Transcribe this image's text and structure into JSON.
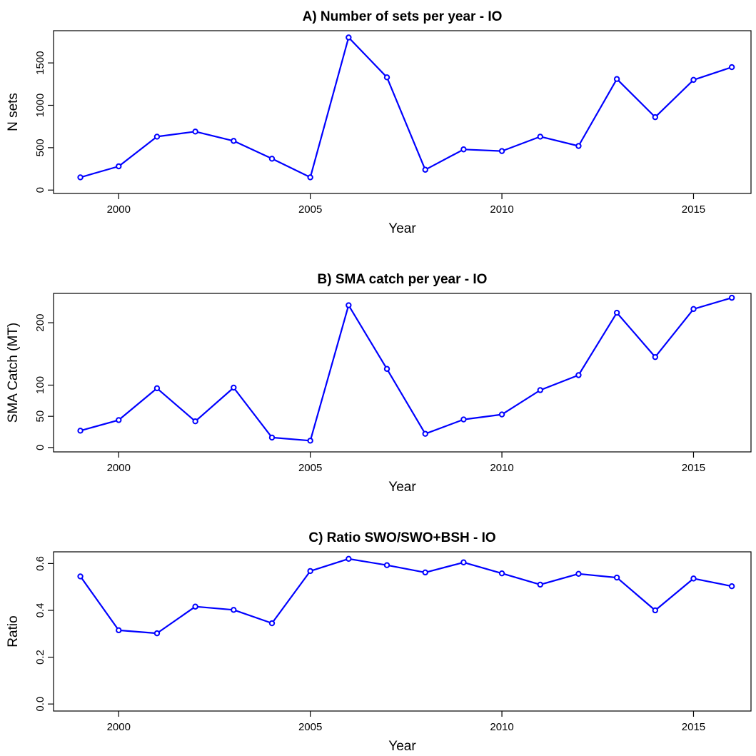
{
  "chart_data": [
    {
      "type": "line",
      "title": "A) Number of sets per year - IO",
      "xlabel": "Year",
      "ylabel": "N sets",
      "x": [
        1999,
        2000,
        2001,
        2002,
        2003,
        2004,
        2005,
        2006,
        2007,
        2008,
        2009,
        2010,
        2011,
        2012,
        2013,
        2014,
        2015,
        2016
      ],
      "series": [
        {
          "values": [
            150,
            280,
            630,
            690,
            580,
            370,
            150,
            1800,
            1330,
            240,
            480,
            460,
            630,
            520,
            1310,
            860,
            1300,
            1450
          ]
        }
      ],
      "xticks": [
        2000,
        2005,
        2010,
        2015
      ],
      "yticks": [
        0,
        500,
        1000,
        1500
      ],
      "xlim": [
        1998.3,
        2016.5
      ],
      "ylim": [
        -40,
        1880
      ],
      "color": "#0000ff",
      "grid": false
    },
    {
      "type": "line",
      "title": "B) SMA catch per year - IO",
      "xlabel": "Year",
      "ylabel": "SMA Catch (MT)",
      "x": [
        1999,
        2000,
        2001,
        2002,
        2003,
        2004,
        2005,
        2006,
        2007,
        2008,
        2009,
        2010,
        2011,
        2012,
        2013,
        2014,
        2015,
        2016
      ],
      "series": [
        {
          "values": [
            27,
            44,
            95,
            42,
            96,
            16,
            11,
            228,
            126,
            22,
            45,
            53,
            92,
            116,
            216,
            145,
            222,
            240
          ]
        }
      ],
      "xticks": [
        2000,
        2005,
        2010,
        2015
      ],
      "yticks": [
        0,
        50,
        100,
        200
      ],
      "xlim": [
        1998.3,
        2016.5
      ],
      "ylim": [
        -7,
        247
      ],
      "color": "#0000ff",
      "grid": false
    },
    {
      "type": "line",
      "title": "C) Ratio SWO/SWO+BSH - IO",
      "xlabel": "Year",
      "ylabel": "Ratio",
      "x": [
        1999,
        2000,
        2001,
        2002,
        2003,
        2004,
        2005,
        2006,
        2007,
        2008,
        2009,
        2010,
        2011,
        2012,
        2013,
        2014,
        2015,
        2016
      ],
      "series": [
        {
          "values": [
            0.545,
            0.315,
            0.302,
            0.416,
            0.402,
            0.345,
            0.568,
            0.62,
            0.593,
            0.562,
            0.605,
            0.558,
            0.51,
            0.556,
            0.54,
            0.4,
            0.536,
            0.503
          ]
        }
      ],
      "xticks": [
        2000,
        2005,
        2010,
        2015
      ],
      "yticks": [
        0.0,
        0.2,
        0.4,
        0.6
      ],
      "ytick_labels": [
        "0.0",
        "0.2",
        "0.4",
        "0.6"
      ],
      "xlim": [
        1998.3,
        2016.5
      ],
      "ylim": [
        -0.03,
        0.65
      ],
      "color": "#0000ff",
      "grid": false
    }
  ]
}
